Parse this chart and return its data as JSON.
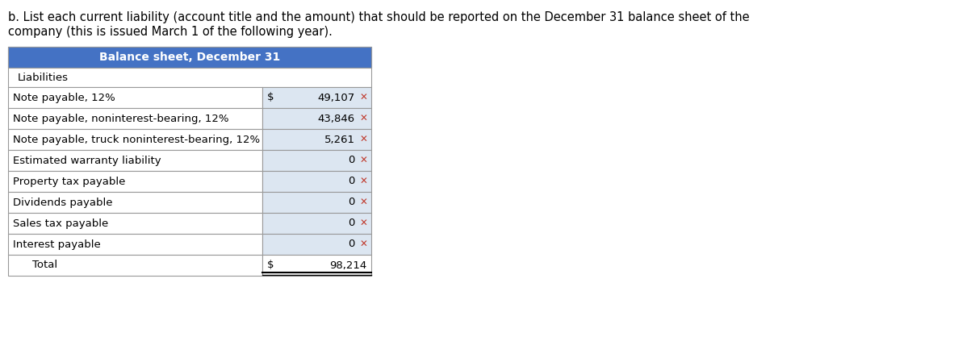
{
  "title_line1": "b. List each current liability (account title and the amount) that should be reported on the December 31 balance sheet of the",
  "title_line2": "company (this is issued March 1 of the following year).",
  "table_header": "Balance sheet, December 31",
  "header_bg": "#4472C4",
  "header_text_color": "#FFFFFF",
  "subheader": "Liabilities",
  "rows": [
    {
      "label": "Note payable, 12%",
      "dollar": "$",
      "value": "49,107",
      "mark": true
    },
    {
      "label": "Note payable, noninterest-bearing, 12%",
      "dollar": "",
      "value": "43,846",
      "mark": true
    },
    {
      "label": "Note payable, truck noninterest-bearing, 12%",
      "dollar": "",
      "value": "5,261",
      "mark": true
    },
    {
      "label": "Estimated warranty liability",
      "dollar": "",
      "value": "0",
      "mark": true
    },
    {
      "label": "Property tax payable",
      "dollar": "",
      "value": "0",
      "mark": true
    },
    {
      "label": "Dividends payable",
      "dollar": "",
      "value": "0",
      "mark": true
    },
    {
      "label": "Sales tax payable",
      "dollar": "",
      "value": "0",
      "mark": true
    },
    {
      "label": "Interest payable",
      "dollar": "",
      "value": "0",
      "mark": true
    }
  ],
  "total_row": {
    "label": "Total",
    "dollar": "$",
    "value": "98,214"
  },
  "row_bg_light": "#DCE6F1",
  "row_bg_white": "#FFFFFF",
  "subheader_bg": "#FFFFFF",
  "border_color": "#999999",
  "mark_color": "#C0392B",
  "font_size": 9.5,
  "header_font_size": 10
}
